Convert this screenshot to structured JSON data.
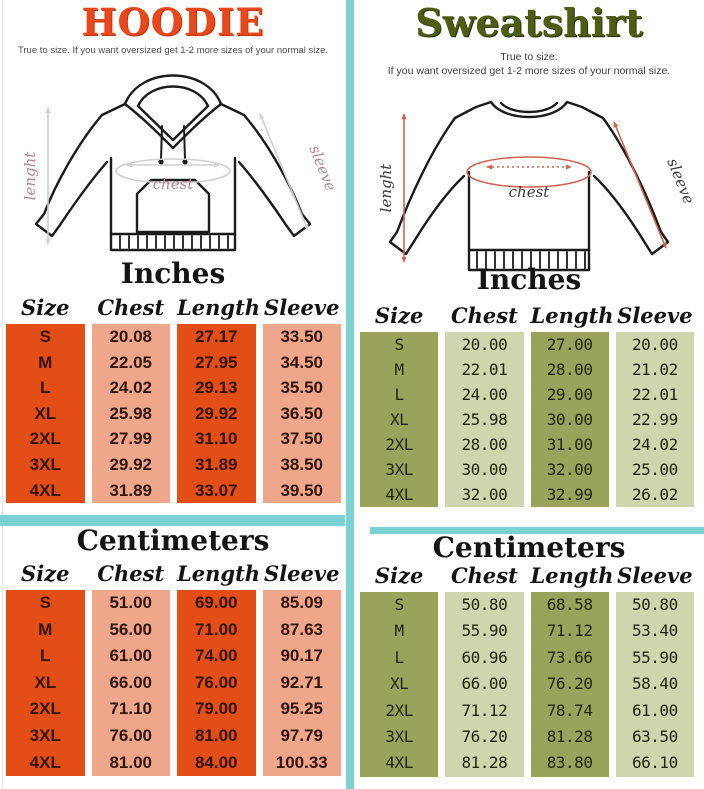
{
  "colors": {
    "teal": "#7bd2d4",
    "hoodie_title": "#e8481c",
    "hoodie_cell_dark": "#e34e17",
    "hoodie_cell_light": "#efa78c",
    "hoodie_text": "#331409",
    "hoodie_label": "#b08793",
    "sweatshirt_title": "#4f5c15",
    "sweatshirt_cell_dark": "#9aa35c",
    "sweatshirt_cell_light": "#cfd5af",
    "sweatshirt_text": "#22270e",
    "sweatshirt_arrow": "#cd6454"
  },
  "hoodie": {
    "title": "HOODIE",
    "subtitle": "True to size. If you want oversized get 1-2 more sizes of your normal size.",
    "diagram": {
      "length_label": "lenght",
      "chest_label": "chest",
      "sleeve_label": "sleeve"
    },
    "inches": {
      "heading": "Inches",
      "columns": [
        "Size",
        "Chest",
        "Length",
        "Sleeve"
      ],
      "rows": [
        [
          "S",
          "20.08",
          "27.17",
          "33.50"
        ],
        [
          "M",
          "22.05",
          "27.95",
          "34.50"
        ],
        [
          "L",
          "24.02",
          "29.13",
          "35.50"
        ],
        [
          "XL",
          "25.98",
          "29.92",
          "36.50"
        ],
        [
          "2XL",
          "27.99",
          "31.10",
          "37.50"
        ],
        [
          "3XL",
          "29.92",
          "31.89",
          "38.50"
        ],
        [
          "4XL",
          "31.89",
          "33.07",
          "39.50"
        ]
      ]
    },
    "centimeters": {
      "heading": "Centimeters",
      "columns": [
        "Size",
        "Chest",
        "Length",
        "Sleeve"
      ],
      "rows": [
        [
          "S",
          "51.00",
          "69.00",
          "85.09"
        ],
        [
          "M",
          "56.00",
          "71.00",
          "87.63"
        ],
        [
          "L",
          "61.00",
          "74.00",
          "90.17"
        ],
        [
          "XL",
          "66.00",
          "76.00",
          "92.71"
        ],
        [
          "2XL",
          "71.10",
          "79.00",
          "95.25"
        ],
        [
          "3XL",
          "76.00",
          "81.00",
          "97.79"
        ],
        [
          "4XL",
          "81.00",
          "84.00",
          "100.33"
        ]
      ]
    }
  },
  "sweatshirt": {
    "title": "Sweatshirt",
    "subtitle_line1": "True to size.",
    "subtitle_line2": "If you want oversized get 1-2 more sizes of your normal size.",
    "diagram": {
      "length_label": "lenght",
      "chest_label": "chest",
      "sleeve_label": "sleeve"
    },
    "inches": {
      "heading": "Inches",
      "columns": [
        "Size",
        "Chest",
        "Length",
        "Sleeve"
      ],
      "rows": [
        [
          "S",
          "20.00",
          "27.00",
          "20.00"
        ],
        [
          "M",
          "22.01",
          "28.00",
          "21.02"
        ],
        [
          "L",
          "24.00",
          "29.00",
          "22.01"
        ],
        [
          "XL",
          "25.98",
          "30.00",
          "22.99"
        ],
        [
          "2XL",
          "28.00",
          "31.00",
          "24.02"
        ],
        [
          "3XL",
          "30.00",
          "32.00",
          "25.00"
        ],
        [
          "4XL",
          "32.00",
          "32.99",
          "26.02"
        ]
      ]
    },
    "centimeters": {
      "heading": "Centimeters",
      "columns": [
        "Size",
        "Chest",
        "Length",
        "Sleeve"
      ],
      "rows": [
        [
          "S",
          "50.80",
          "68.58",
          "50.80"
        ],
        [
          "M",
          "55.90",
          "71.12",
          "53.40"
        ],
        [
          "L",
          "60.96",
          "73.66",
          "55.90"
        ],
        [
          "XL",
          "66.00",
          "76.20",
          "58.40"
        ],
        [
          "2XL",
          "71.12",
          "78.74",
          "61.00"
        ],
        [
          "3XL",
          "76.20",
          "81.28",
          "63.50"
        ],
        [
          "4XL",
          "81.28",
          "83.80",
          "66.10"
        ]
      ]
    }
  }
}
